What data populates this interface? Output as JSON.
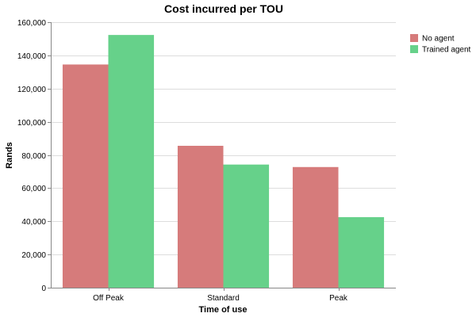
{
  "chart_data": {
    "type": "bar",
    "title": "Cost incurred per TOU",
    "xlabel": "Time of use",
    "ylabel": "Rands",
    "categories": [
      "Off Peak",
      "Standard",
      "Peak"
    ],
    "series": [
      {
        "name": "No agent",
        "color": "#d67b7b",
        "values": [
          134500,
          85500,
          72700
        ]
      },
      {
        "name": "Trained agent",
        "color": "#66d18a",
        "values": [
          152300,
          74200,
          42500
        ]
      }
    ],
    "ylim": [
      0,
      160000
    ],
    "yticks": [
      0,
      20000,
      40000,
      60000,
      80000,
      100000,
      120000,
      140000,
      160000
    ],
    "ytick_labels": [
      "0",
      "20,000",
      "40,000",
      "60,000",
      "80,000",
      "100,000",
      "120,000",
      "140,000",
      "160,000"
    ],
    "grid": true,
    "legend_position": "top-right"
  }
}
